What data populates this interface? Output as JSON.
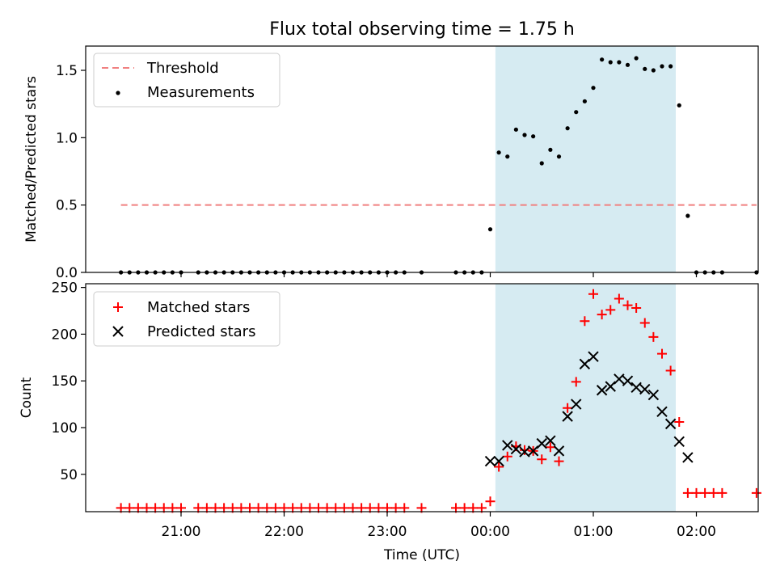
{
  "chart_data": {
    "title": "Flux total observing time = 1.75 h",
    "xlabel": "Time (UTC)",
    "x_ticks": [
      "21:00",
      "22:00",
      "23:00",
      "00:00",
      "01:00",
      "02:00"
    ],
    "colors": {
      "threshold": "#f08080",
      "measurements": "#000000",
      "matched": "#ff0000",
      "predicted": "#000000",
      "span": "#add8e6"
    },
    "shaded_span": [
      "00:03",
      "01:48"
    ],
    "panels": [
      {
        "type": "scatter",
        "ylabel": "Matched/Predicted stars",
        "ylim": [
          0,
          1.68
        ],
        "y_ticks": [
          "0.0",
          "0.5",
          "1.0",
          "1.5"
        ],
        "legend": {
          "position": "top-left",
          "entries": [
            "Threshold",
            "Measurements"
          ]
        },
        "threshold": {
          "name": "Threshold",
          "value": 0.5,
          "x_range": [
            "20:25",
            "02:35"
          ]
        },
        "measurements": {
          "name": "Measurements",
          "x": [
            "20:25",
            "20:30",
            "20:35",
            "20:40",
            "20:45",
            "20:50",
            "20:55",
            "21:00",
            "21:10",
            "21:15",
            "21:20",
            "21:25",
            "21:30",
            "21:35",
            "21:40",
            "21:45",
            "21:50",
            "21:55",
            "22:00",
            "22:05",
            "22:10",
            "22:15",
            "22:20",
            "22:25",
            "22:30",
            "22:35",
            "22:40",
            "22:45",
            "22:50",
            "22:55",
            "23:00",
            "23:05",
            "23:10",
            "23:20",
            "23:40",
            "23:45",
            "23:50",
            "23:55",
            "00:00",
            "00:05",
            "00:10",
            "00:15",
            "00:20",
            "00:25",
            "00:30",
            "00:35",
            "00:40",
            "00:45",
            "00:50",
            "00:55",
            "01:00",
            "01:05",
            "01:10",
            "01:15",
            "01:20",
            "01:25",
            "01:30",
            "01:35",
            "01:40",
            "01:45",
            "01:50",
            "01:55",
            "02:00",
            "02:05",
            "02:10",
            "02:15",
            "02:35"
          ],
          "y": [
            0,
            0,
            0,
            0,
            0,
            0,
            0,
            0,
            0,
            0,
            0,
            0,
            0,
            0,
            0,
            0,
            0,
            0,
            0,
            0,
            0,
            0,
            0,
            0,
            0,
            0,
            0,
            0,
            0,
            0,
            0,
            0,
            0,
            0,
            0,
            0,
            0,
            0,
            0.32,
            0.89,
            0.86,
            1.06,
            1.02,
            1.01,
            0.81,
            0.91,
            0.86,
            1.07,
            1.19,
            1.27,
            1.37,
            1.58,
            1.56,
            1.56,
            1.54,
            1.59,
            1.51,
            1.5,
            1.53,
            1.53,
            1.24,
            0.42,
            0,
            0,
            0,
            0,
            0
          ]
        }
      },
      {
        "type": "scatter",
        "ylabel": "Count",
        "ylim": [
          10,
          254
        ],
        "y_ticks": [
          "50",
          "100",
          "150",
          "200",
          "250"
        ],
        "legend": {
          "position": "top-left",
          "entries": [
            "Matched stars",
            "Predicted stars"
          ]
        },
        "matched": {
          "name": "Matched stars",
          "x": [
            "20:25",
            "20:30",
            "20:35",
            "20:40",
            "20:45",
            "20:50",
            "20:55",
            "21:00",
            "21:10",
            "21:15",
            "21:20",
            "21:25",
            "21:30",
            "21:35",
            "21:40",
            "21:45",
            "21:50",
            "21:55",
            "22:00",
            "22:05",
            "22:10",
            "22:15",
            "22:20",
            "22:25",
            "22:30",
            "22:35",
            "22:40",
            "22:45",
            "22:50",
            "22:55",
            "23:00",
            "23:05",
            "23:10",
            "23:20",
            "23:40",
            "23:45",
            "23:50",
            "23:55",
            "00:00",
            "00:05",
            "00:10",
            "00:15",
            "00:20",
            "00:25",
            "00:30",
            "00:35",
            "00:40",
            "00:45",
            "00:50",
            "00:55",
            "01:00",
            "01:05",
            "01:10",
            "01:15",
            "01:20",
            "01:25",
            "01:30",
            "01:35",
            "01:40",
            "01:45",
            "01:50",
            "01:55",
            "02:00",
            "02:05",
            "02:10",
            "02:15",
            "02:35"
          ],
          "y": [
            14,
            14,
            14,
            14,
            14,
            14,
            14,
            14,
            14,
            14,
            14,
            14,
            14,
            14,
            14,
            14,
            14,
            14,
            14,
            14,
            14,
            14,
            14,
            14,
            14,
            14,
            14,
            14,
            14,
            14,
            14,
            14,
            14,
            14,
            14,
            14,
            14,
            14,
            21,
            58,
            69,
            80,
            76,
            75,
            66,
            79,
            64,
            121,
            149,
            214,
            243,
            221,
            226,
            238,
            231,
            228,
            212,
            197,
            179,
            161,
            106,
            30,
            30,
            30,
            30,
            30,
            30
          ]
        },
        "predicted": {
          "name": "Predicted stars",
          "x": [
            "00:00",
            "00:05",
            "00:10",
            "00:15",
            "00:20",
            "00:25",
            "00:30",
            "00:35",
            "00:40",
            "00:45",
            "00:50",
            "00:55",
            "01:00",
            "01:05",
            "01:10",
            "01:15",
            "01:20",
            "01:25",
            "01:30",
            "01:35",
            "01:40",
            "01:45",
            "01:50",
            "01:55"
          ],
          "y": [
            64,
            64,
            81,
            77,
            74,
            75,
            83,
            86,
            75,
            112,
            125,
            168,
            176,
            140,
            144,
            152,
            150,
            143,
            141,
            135,
            117,
            104,
            85,
            68
          ]
        }
      }
    ]
  }
}
